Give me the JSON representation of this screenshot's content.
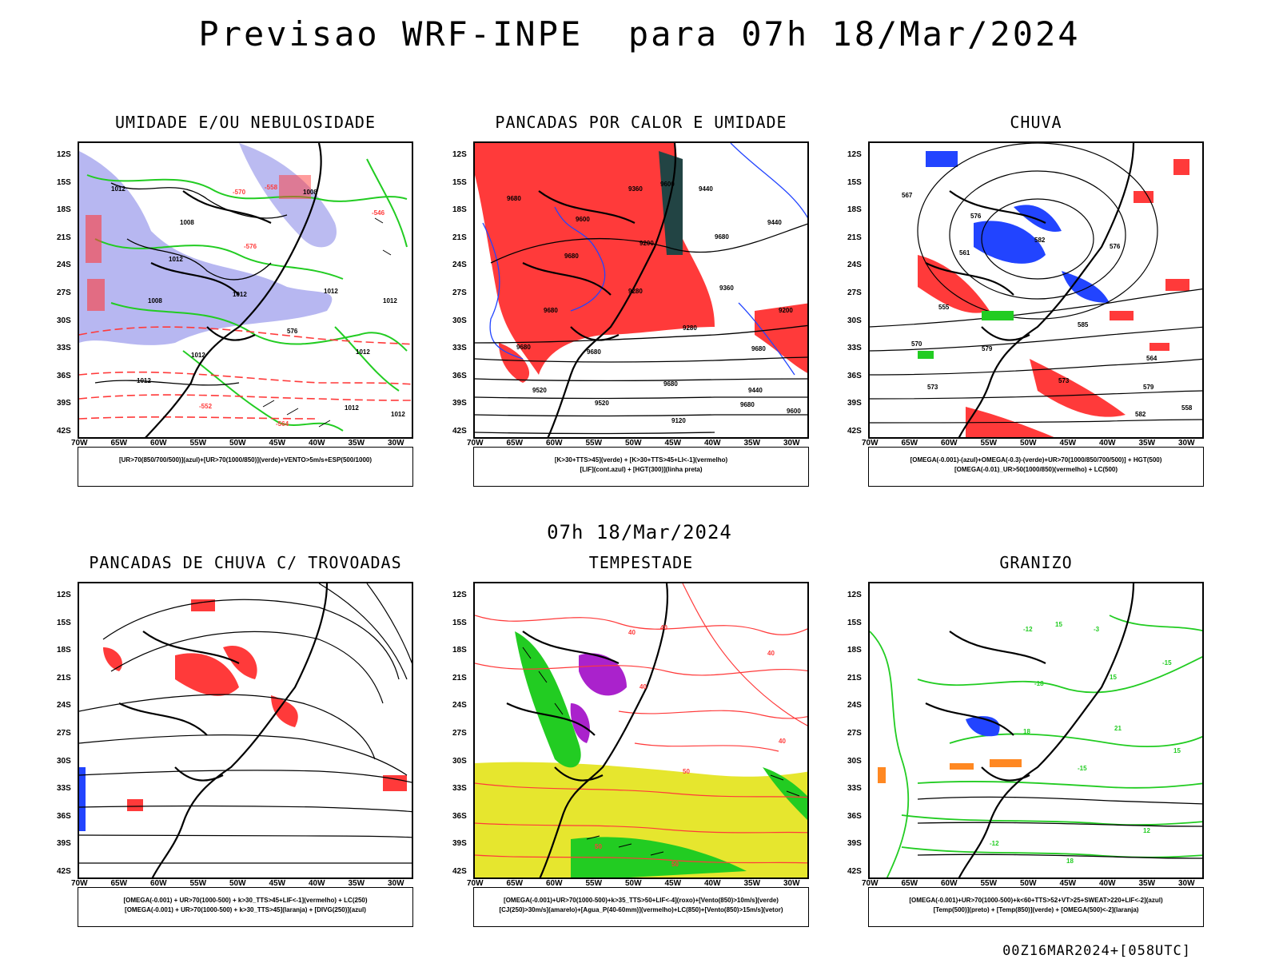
{
  "page": {
    "title": "Previsao WRF-INPE  para 07h 18/Mar/2024",
    "subtitle": "07h 18/Mar/2024",
    "footer": "00Z16MAR2024+[058UTC]"
  },
  "axes": {
    "lat_labels": [
      "12S",
      "15S",
      "18S",
      "21S",
      "24S",
      "27S",
      "30S",
      "33S",
      "36S",
      "39S",
      "42S"
    ],
    "lon_labels": [
      "70W",
      "65W",
      "60W",
      "55W",
      "50W",
      "45W",
      "40W",
      "35W",
      "30W"
    ]
  },
  "colors": {
    "green": "#22cc22",
    "red": "#ff3a3a",
    "blue": "#2244ff",
    "lavender": "#aaaaee",
    "yellow": "#e6e62e",
    "purple": "#aa22cc",
    "orange": "#ff8822",
    "dark": "#224444"
  },
  "panels": [
    {
      "title": "UMIDADE E/OU NEBULOSIDADE",
      "legend": [
        "[UR>70(850/700/500)](azul)+[UR>70(1000/850)](verde)+VENTO>5m/s+ESP(500/1000)"
      ],
      "labels": [
        "1012",
        "1012",
        "1012",
        "1012",
        "1008",
        "1012",
        "1012",
        "1008",
        "1012",
        "1008",
        "1012",
        "1012",
        "1012",
        "-564",
        "-558",
        "-552",
        "-546",
        "-570",
        "576",
        "-576"
      ]
    },
    {
      "title": "PANCADAS POR CALOR E UMIDADE",
      "legend": [
        "[K>30+TTS>45](verde) + [K>30+TTS>45+LI<-1](vermelho)",
        "[LIF](cont.azul) + [HGT(300)](linha preta)"
      ],
      "labels": [
        "9680",
        "9680",
        "9680",
        "9680",
        "9680",
        "9680",
        "9600",
        "9680",
        "9680",
        "9680",
        "9600",
        "9520",
        "9440",
        "9360",
        "9280",
        "9200",
        "9120",
        "9600",
        "9520",
        "9440",
        "9360",
        "9280",
        "9200",
        "9440"
      ]
    },
    {
      "title": "CHUVA",
      "legend": [
        "[OMEGA(-0.001)-(azul)+OMEGA(-0.3)-(verde)+UR>70(1000/850/700/500)] + HGT(500)",
        "[OMEGA(-0.01)_UR>50(1000/850)(vermelho) + LC(500)"
      ],
      "labels": [
        "585",
        "582",
        "579",
        "576",
        "573",
        "570",
        "567",
        "564",
        "561",
        "558",
        "555",
        "582",
        "579",
        "576",
        "573"
      ]
    },
    {
      "title": "PANCADAS DE CHUVA C/ TROVOADAS",
      "legend": [
        "[OMEGA(-0.001) + UR>70(1000-500) + k>30_TTS>45+LIF<-1](vermelho) + LC(250)",
        "[OMEGA(-0.001) + UR>70(1000-500) + k>30_TTS>45](laranja) + [DIVG(250)](azul)"
      ],
      "labels": []
    },
    {
      "title": "TEMPESTADE",
      "legend": [
        "[OMEGA(-0.001)+UR>70(1000-500)+k>35_TTS>50+LIF<-4](roxo)+[Vento(850)>10m/s](verde)",
        "[CJ(250)>30m/s](amarelo)+[Agua_P(40-60mm)](vermelho)+LC(850)+[Vento(850)>15m/s](vetor)"
      ],
      "labels": [
        "40",
        "50",
        "40",
        "50",
        "40",
        "40",
        "50",
        "40"
      ]
    },
    {
      "title": "GRANIZO",
      "legend": [
        "[OMEGA(-0.001)+UR>70(1000-500)+k<60+TTS>52+VT>25+SWEAT>220+LIF<-2](azul)",
        "[Temp(500)](preto) + [Temp(850)](verde) + [OMEGA(500)<-2](laranja)"
      ],
      "labels": [
        "-3",
        "21",
        "18",
        "15",
        "18",
        "15",
        "-12",
        "-15",
        "-12",
        "-15",
        "-18",
        "12",
        "15"
      ]
    }
  ]
}
